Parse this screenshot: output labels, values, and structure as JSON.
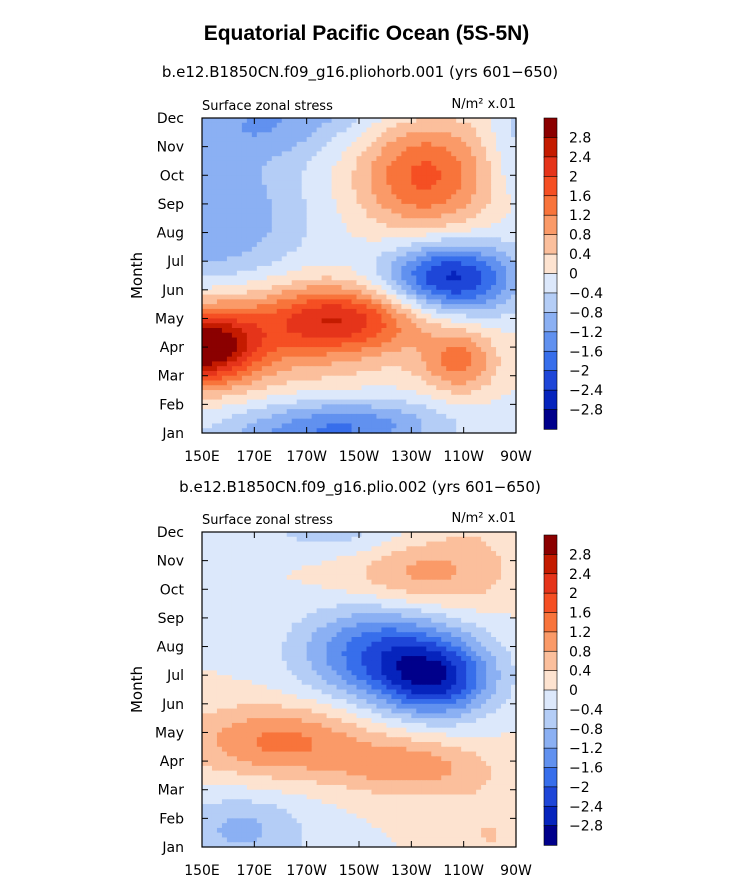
{
  "title": "Equatorial Pacific Ocean (5S-5N)",
  "chart_data": {
    "type": "heatmap",
    "color_levels": [
      -2.8,
      -2.4,
      -2.0,
      -1.6,
      -1.2,
      -0.8,
      -0.4,
      0,
      0.4,
      0.8,
      1.2,
      1.6,
      2.0,
      2.4,
      2.8
    ],
    "colorbar_labels": [
      "2.8",
      "2.4",
      "2",
      "1.6",
      "1.2",
      "0.8",
      "0.4",
      "0",
      "−0.4",
      "−0.8",
      "−1.2",
      "−1.6",
      "−2",
      "−2.4",
      "−2.8"
    ],
    "colorbar_colors": [
      "#8b0000",
      "#c41b00",
      "#e5341a",
      "#f54f23",
      "#f8743b",
      "#fa9a68",
      "#fbbf9c",
      "#fde3d0",
      "#dce8fb",
      "#b4cdf6",
      "#8bb0f3",
      "#6191ef",
      "#376eeb",
      "#1e46d8",
      "#0624bd",
      "#00008b"
    ],
    "y_ticks": [
      "Jan",
      "Feb",
      "Mar",
      "Apr",
      "May",
      "Jun",
      "Jul",
      "Aug",
      "Sep",
      "Oct",
      "Nov",
      "Dec"
    ],
    "x_ticks": [
      "150E",
      "170E",
      "170W",
      "150W",
      "130W",
      "110W",
      "90W"
    ],
    "x_tick_lon": [
      150,
      170,
      190,
      210,
      230,
      250,
      270
    ],
    "panels": [
      {
        "title": "b.e12.B1850CN.f09_g16.pliohorb.001 (yrs 601−650)",
        "left_label": "Surface zonal stress",
        "right_label": "N/m² x.01",
        "ylabel": "Month",
        "centers": [
          {
            "lon": 150,
            "month": 4.0,
            "amp": 3.0,
            "slon": 14,
            "smon": 0.9
          },
          {
            "lon": 180,
            "month": 4.5,
            "amp": 1.0,
            "slon": 30,
            "smon": 1.3
          },
          {
            "lon": 205,
            "month": 5.0,
            "amp": 1.8,
            "slon": 22,
            "smon": 0.8
          },
          {
            "lon": 248,
            "month": 3.5,
            "amp": 1.3,
            "slon": 10,
            "smon": 0.8
          },
          {
            "lon": 235,
            "month": 10.0,
            "amp": 1.7,
            "slon": 18,
            "smon": 1.4
          },
          {
            "lon": 245,
            "month": 6.4,
            "amp": -2.6,
            "slon": 18,
            "smon": 0.9
          },
          {
            "lon": 155,
            "month": 8.5,
            "amp": -1.2,
            "slon": 25,
            "smon": 2.0
          },
          {
            "lon": 205,
            "month": 1.2,
            "amp": -1.6,
            "slon": 28,
            "smon": 0.7
          },
          {
            "lon": 175,
            "month": 11.7,
            "amp": -0.9,
            "slon": 25,
            "smon": 0.8
          },
          {
            "lon": 270,
            "month": 11.0,
            "amp": -0.6,
            "slon": 8,
            "smon": 1.5
          }
        ]
      },
      {
        "title": "b.e12.B1850CN.f09_g16.plio.002 (yrs 601−650)",
        "left_label": "Surface zonal stress",
        "right_label": "N/m² x.01",
        "ylabel": "Month",
        "centers": [
          {
            "lon": 220,
            "month": 7.8,
            "amp": -2.0,
            "slon": 22,
            "smon": 1.2
          },
          {
            "lon": 240,
            "month": 6.8,
            "amp": -2.0,
            "slon": 15,
            "smon": 0.9
          },
          {
            "lon": 180,
            "month": 4.7,
            "amp": 1.3,
            "slon": 25,
            "smon": 0.9
          },
          {
            "lon": 230,
            "month": 3.8,
            "amp": 1.0,
            "slon": 20,
            "smon": 0.7
          },
          {
            "lon": 235,
            "month": 10.5,
            "amp": 1.0,
            "slon": 22,
            "smon": 1.0
          },
          {
            "lon": 165,
            "month": 1.6,
            "amp": -0.9,
            "slon": 18,
            "smon": 0.9
          },
          {
            "lon": 205,
            "month": 11.9,
            "amp": -0.6,
            "slon": 20,
            "smon": 0.6
          },
          {
            "lon": 260,
            "month": 1.5,
            "amp": 0.4,
            "slon": 15,
            "smon": 1.2
          }
        ]
      }
    ]
  }
}
